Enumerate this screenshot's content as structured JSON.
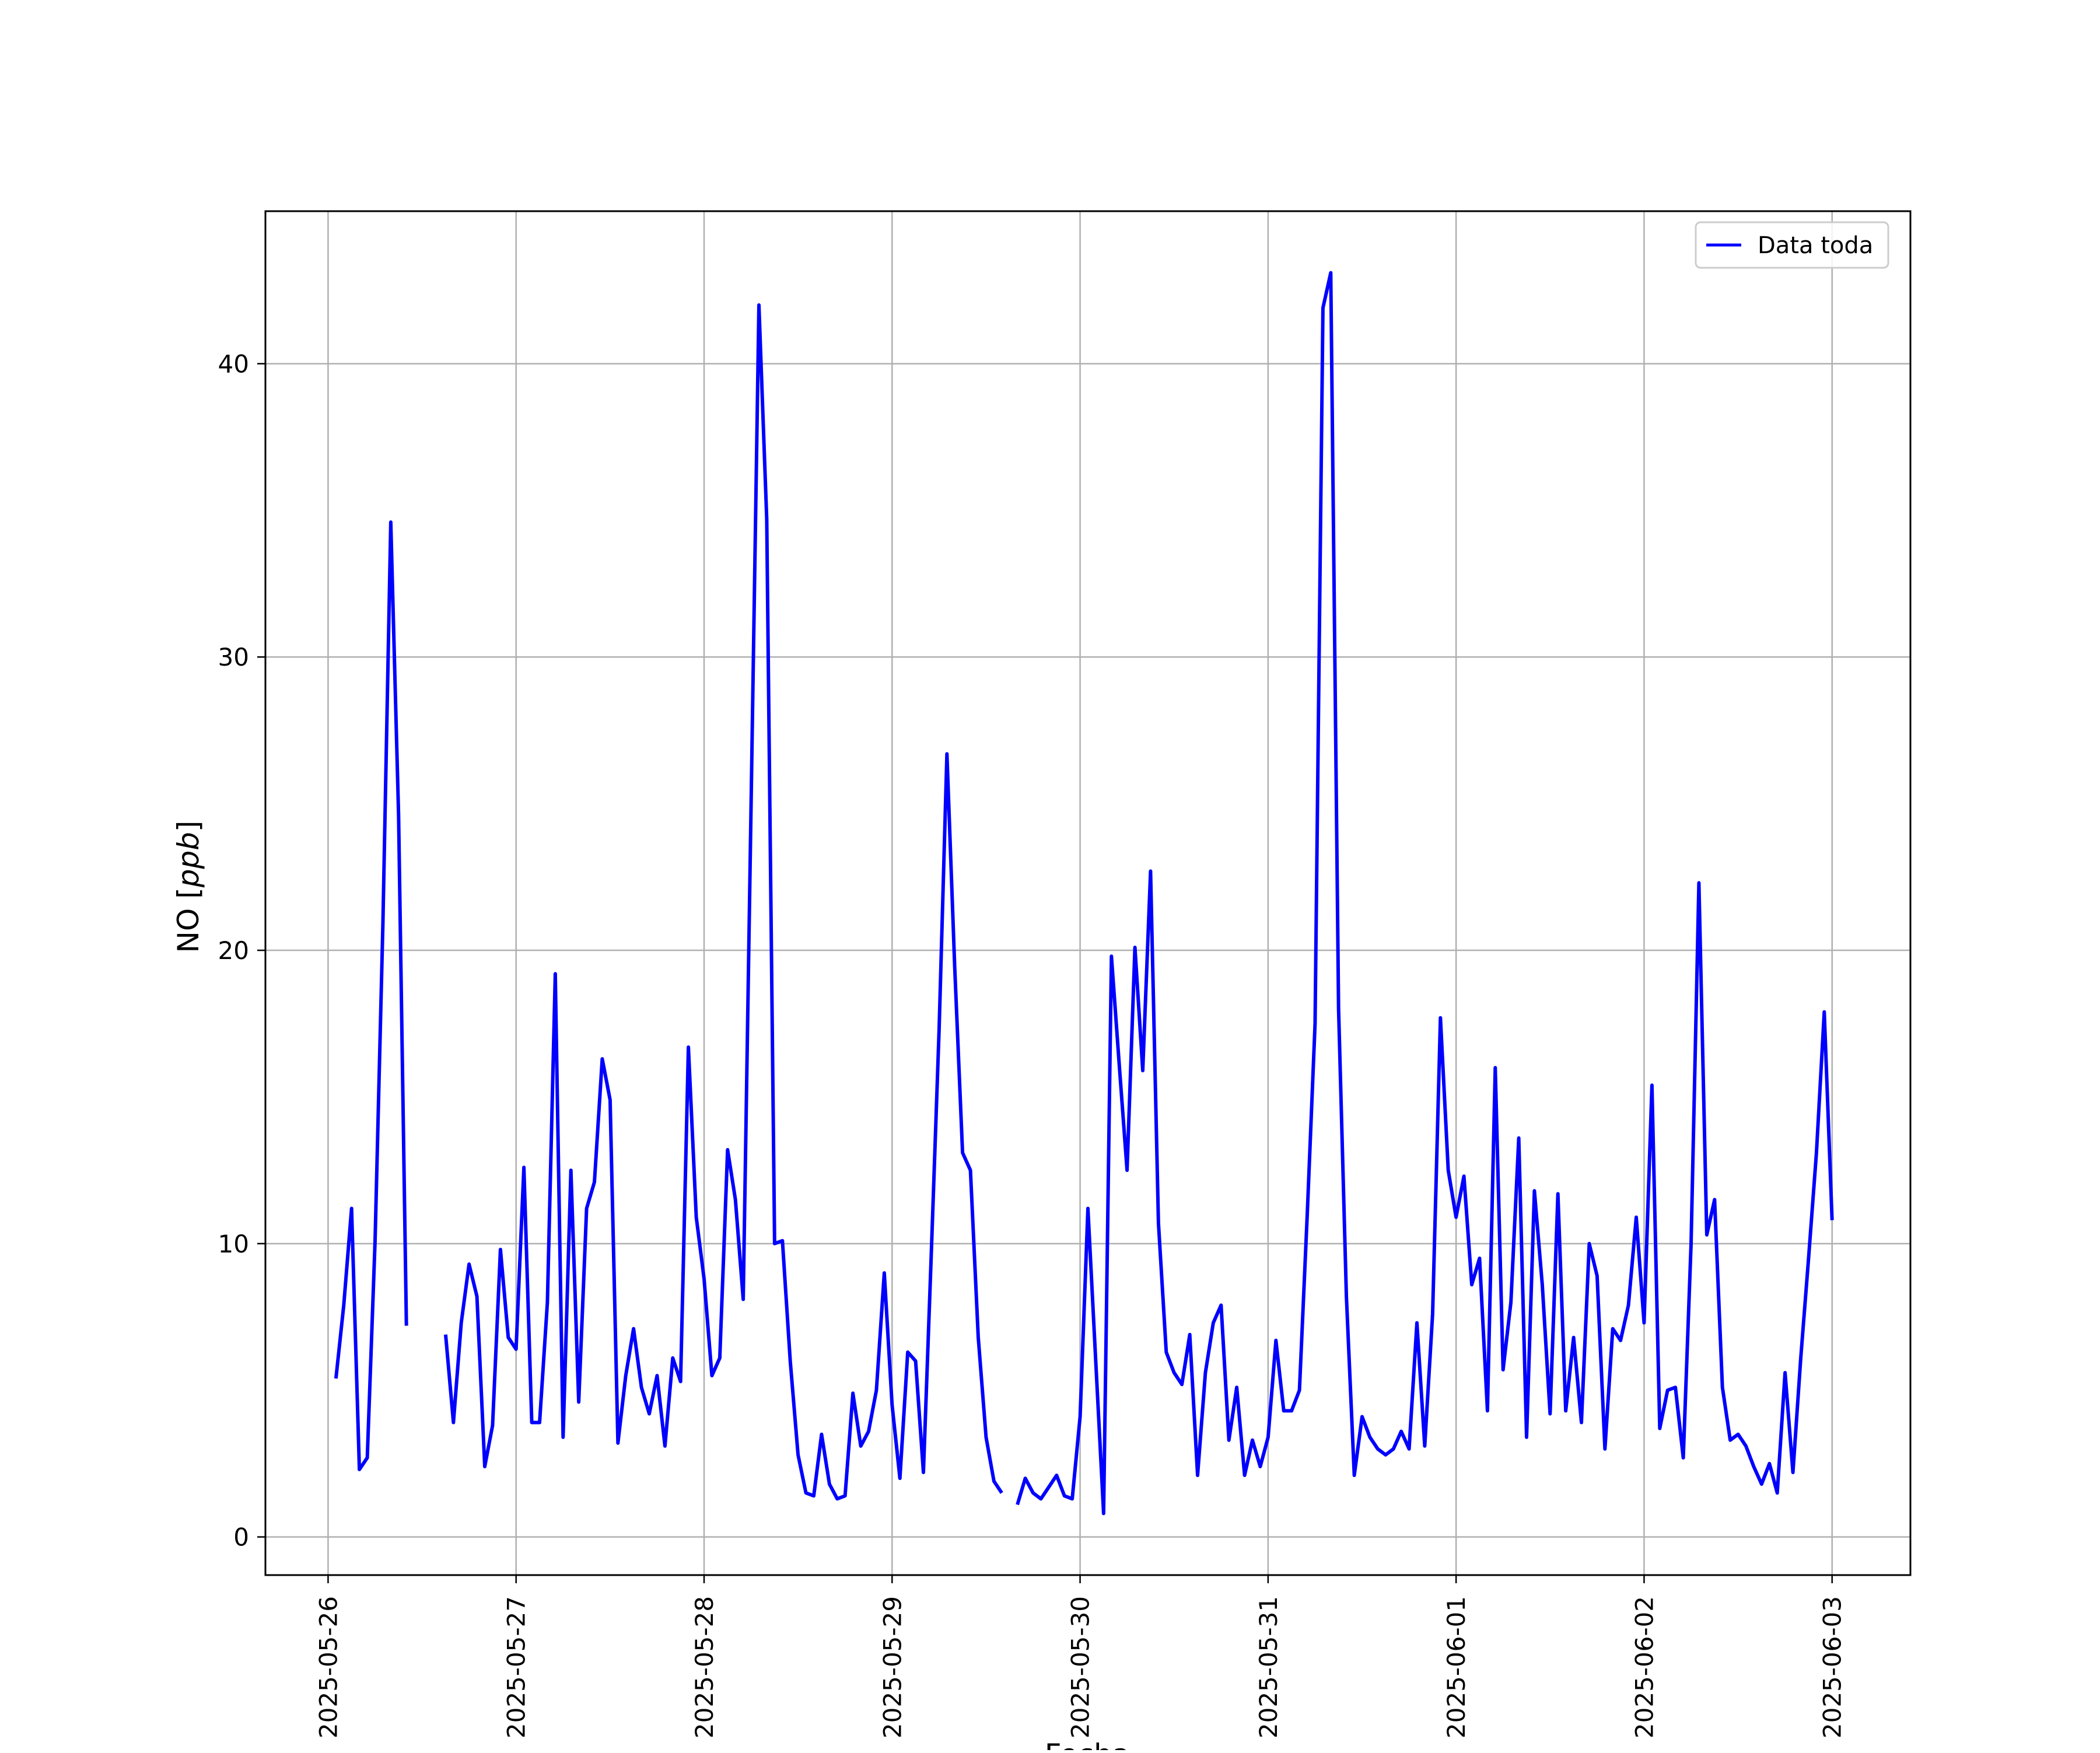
{
  "chart_data": {
    "type": "line",
    "title": "",
    "xlabel": "Fecha",
    "ylabel_main": "NO [",
    "ylabel_unit": "ppb",
    "ylabel_end": "]",
    "x_start": "2025-05-26",
    "x_ticks": [
      "2025-05-26",
      "2025-05-27",
      "2025-05-28",
      "2025-05-29",
      "2025-05-30",
      "2025-05-31",
      "2025-06-01",
      "2025-06-02",
      "2025-06-03"
    ],
    "y_ticks": [
      0,
      10,
      20,
      30,
      40
    ],
    "xlim": [
      "2025-05-25 16:00",
      "2025-06-03 10:00"
    ],
    "ylim": [
      -1.3,
      45.2
    ],
    "grid": true,
    "legend": {
      "position": "top-right"
    },
    "series": [
      {
        "name": "Data toda",
        "color": "#0000ff",
        "points": [
          [
            "2025-05-26 01:00",
            5.4
          ],
          [
            "2025-05-26 02:00",
            7.9
          ],
          [
            "2025-05-26 03:00",
            11.2
          ],
          [
            "2025-05-26 04:00",
            2.3
          ],
          [
            "2025-05-26 05:00",
            2.7
          ],
          [
            "2025-05-26 06:00",
            10.1
          ],
          [
            "2025-05-26 07:00",
            20.9
          ],
          [
            "2025-05-26 08:00",
            34.6
          ],
          [
            "2025-05-26 09:00",
            24.6
          ],
          [
            "2025-05-26 10:00",
            7.2
          ],
          null,
          [
            "2025-05-26 15:00",
            6.9
          ],
          [
            "2025-05-26 16:00",
            3.9
          ],
          [
            "2025-05-26 17:00",
            7.3
          ],
          [
            "2025-05-26 18:00",
            9.3
          ],
          [
            "2025-05-26 19:00",
            8.2
          ],
          [
            "2025-05-26 20:00",
            2.4
          ],
          [
            "2025-05-26 21:00",
            3.8
          ],
          [
            "2025-05-26 22:00",
            9.8
          ],
          [
            "2025-05-26 23:00",
            6.8
          ],
          [
            "2025-05-27 00:00",
            6.4
          ],
          [
            "2025-05-27 01:00",
            12.6
          ],
          [
            "2025-05-27 02:00",
            3.9
          ],
          [
            "2025-05-27 03:00",
            3.9
          ],
          [
            "2025-05-27 04:00",
            8.0
          ],
          [
            "2025-05-27 05:00",
            19.2
          ],
          [
            "2025-05-27 06:00",
            3.4
          ],
          [
            "2025-05-27 07:00",
            12.5
          ],
          [
            "2025-05-27 08:00",
            4.6
          ],
          [
            "2025-05-27 09:00",
            11.2
          ],
          [
            "2025-05-27 10:00",
            12.1
          ],
          [
            "2025-05-27 11:00",
            16.3
          ],
          [
            "2025-05-27 12:00",
            14.9
          ],
          [
            "2025-05-27 13:00",
            3.2
          ],
          [
            "2025-05-27 14:00",
            5.5
          ],
          [
            "2025-05-27 15:00",
            7.1
          ],
          [
            "2025-05-27 16:00",
            5.1
          ],
          [
            "2025-05-27 17:00",
            4.2
          ],
          [
            "2025-05-27 18:00",
            5.5
          ],
          [
            "2025-05-27 19:00",
            3.1
          ],
          [
            "2025-05-27 20:00",
            6.1
          ],
          [
            "2025-05-27 21:00",
            5.3
          ],
          [
            "2025-05-27 22:00",
            16.7
          ],
          [
            "2025-05-27 23:00",
            10.9
          ],
          [
            "2025-05-28 00:00",
            8.8
          ],
          [
            "2025-05-28 01:00",
            5.5
          ],
          [
            "2025-05-28 02:00",
            6.1
          ],
          [
            "2025-05-28 03:00",
            13.2
          ],
          [
            "2025-05-28 04:00",
            11.5
          ],
          [
            "2025-05-28 05:00",
            8.1
          ],
          [
            "2025-05-28 06:00",
            25.0
          ],
          [
            "2025-05-28 07:00",
            42.0
          ],
          [
            "2025-05-28 08:00",
            34.7
          ],
          [
            "2025-05-28 09:00",
            10.0
          ],
          [
            "2025-05-28 10:00",
            10.1
          ],
          [
            "2025-05-28 11:00",
            6.0
          ],
          [
            "2025-05-28 12:00",
            2.8
          ],
          [
            "2025-05-28 13:00",
            1.5
          ],
          [
            "2025-05-28 14:00",
            1.4
          ],
          [
            "2025-05-28 15:00",
            3.5
          ],
          [
            "2025-05-28 16:00",
            1.8
          ],
          [
            "2025-05-28 17:00",
            1.3
          ],
          [
            "2025-05-28 18:00",
            1.4
          ],
          [
            "2025-05-28 19:00",
            4.9
          ],
          [
            "2025-05-28 20:00",
            3.1
          ],
          [
            "2025-05-28 21:00",
            3.6
          ],
          [
            "2025-05-28 22:00",
            5.0
          ],
          [
            "2025-05-28 23:00",
            9.0
          ],
          [
            "2025-05-29 00:00",
            4.5
          ],
          [
            "2025-05-29 01:00",
            2.0
          ],
          [
            "2025-05-29 02:00",
            6.3
          ],
          [
            "2025-05-29 03:00",
            6.0
          ],
          [
            "2025-05-29 04:00",
            2.2
          ],
          [
            "2025-05-29 05:00",
            9.6
          ],
          [
            "2025-05-29 06:00",
            17.3
          ],
          [
            "2025-05-29 07:00",
            26.7
          ],
          [
            "2025-05-29 08:00",
            19.4
          ],
          [
            "2025-05-29 09:00",
            13.1
          ],
          [
            "2025-05-29 10:00",
            12.5
          ],
          [
            "2025-05-29 11:00",
            6.8
          ],
          [
            "2025-05-29 12:00",
            3.4
          ],
          [
            "2025-05-29 13:00",
            1.9
          ],
          [
            "2025-05-29 14:00",
            1.5
          ],
          null,
          [
            "2025-05-29 16:00",
            1.1
          ],
          [
            "2025-05-29 17:00",
            2.0
          ],
          [
            "2025-05-29 18:00",
            1.5
          ],
          [
            "2025-05-29 19:00",
            1.3
          ],
          [
            "2025-05-29 20:00",
            1.7
          ],
          [
            "2025-05-29 21:00",
            2.1
          ],
          [
            "2025-05-29 22:00",
            1.4
          ],
          [
            "2025-05-29 23:00",
            1.3
          ],
          [
            "2025-05-30 00:00",
            4.1
          ],
          [
            "2025-05-30 01:00",
            11.2
          ],
          [
            "2025-05-30 02:00",
            6.0
          ],
          [
            "2025-05-30 03:00",
            0.8
          ],
          [
            "2025-05-30 04:00",
            19.8
          ],
          [
            "2025-05-30 05:00",
            16.1
          ],
          [
            "2025-05-30 06:00",
            12.5
          ],
          [
            "2025-05-30 07:00",
            20.1
          ],
          [
            "2025-05-30 08:00",
            15.9
          ],
          [
            "2025-05-30 09:00",
            22.7
          ],
          [
            "2025-05-30 10:00",
            10.7
          ],
          [
            "2025-05-30 11:00",
            6.3
          ],
          [
            "2025-05-30 12:00",
            5.6
          ],
          [
            "2025-05-30 13:00",
            5.2
          ],
          [
            "2025-05-30 14:00",
            6.9
          ],
          [
            "2025-05-30 15:00",
            2.1
          ],
          [
            "2025-05-30 16:00",
            5.6
          ],
          [
            "2025-05-30 17:00",
            7.3
          ],
          [
            "2025-05-30 18:00",
            7.9
          ],
          [
            "2025-05-30 19:00",
            3.3
          ],
          [
            "2025-05-30 20:00",
            5.1
          ],
          [
            "2025-05-30 21:00",
            2.1
          ],
          [
            "2025-05-30 22:00",
            3.3
          ],
          [
            "2025-05-30 23:00",
            2.4
          ],
          [
            "2025-05-31 00:00",
            3.4
          ],
          [
            "2025-05-31 01:00",
            6.7
          ],
          [
            "2025-05-31 02:00",
            4.3
          ],
          [
            "2025-05-31 03:00",
            4.3
          ],
          [
            "2025-05-31 04:00",
            5.0
          ],
          [
            "2025-05-31 05:00",
            11.0
          ],
          [
            "2025-05-31 06:00",
            17.5
          ],
          [
            "2025-05-31 07:00",
            41.9
          ],
          [
            "2025-05-31 08:00",
            43.1
          ],
          [
            "2025-05-31 09:00",
            18.0
          ],
          [
            "2025-05-31 10:00",
            8.2
          ],
          [
            "2025-05-31 11:00",
            2.1
          ],
          [
            "2025-05-31 12:00",
            4.1
          ],
          [
            "2025-05-31 13:00",
            3.4
          ],
          [
            "2025-05-31 14:00",
            3.0
          ],
          [
            "2025-05-31 15:00",
            2.8
          ],
          [
            "2025-05-31 16:00",
            3.0
          ],
          [
            "2025-05-31 17:00",
            3.6
          ],
          [
            "2025-05-31 18:00",
            3.0
          ],
          [
            "2025-05-31 19:00",
            7.3
          ],
          [
            "2025-05-31 20:00",
            3.1
          ],
          [
            "2025-05-31 21:00",
            7.6
          ],
          [
            "2025-05-31 22:00",
            17.7
          ],
          [
            "2025-05-31 23:00",
            12.5
          ],
          [
            "2025-06-01 00:00",
            10.9
          ],
          [
            "2025-06-01 01:00",
            12.3
          ],
          [
            "2025-06-01 02:00",
            8.6
          ],
          [
            "2025-06-01 03:00",
            9.5
          ],
          [
            "2025-06-01 04:00",
            4.3
          ],
          [
            "2025-06-01 05:00",
            16.0
          ],
          [
            "2025-06-01 06:00",
            5.7
          ],
          [
            "2025-06-01 07:00",
            8.0
          ],
          [
            "2025-06-01 08:00",
            13.6
          ],
          [
            "2025-06-01 09:00",
            3.4
          ],
          [
            "2025-06-01 10:00",
            11.8
          ],
          [
            "2025-06-01 11:00",
            8.6
          ],
          [
            "2025-06-01 12:00",
            4.2
          ],
          [
            "2025-06-01 13:00",
            11.7
          ],
          [
            "2025-06-01 14:00",
            4.3
          ],
          [
            "2025-06-01 15:00",
            6.8
          ],
          [
            "2025-06-01 16:00",
            3.9
          ],
          [
            "2025-06-01 17:00",
            10.0
          ],
          [
            "2025-06-01 18:00",
            8.9
          ],
          [
            "2025-06-01 19:00",
            3.0
          ],
          [
            "2025-06-01 20:00",
            7.1
          ],
          [
            "2025-06-01 21:00",
            6.7
          ],
          [
            "2025-06-01 22:00",
            7.9
          ],
          [
            "2025-06-01 23:00",
            10.9
          ],
          [
            "2025-06-02 00:00",
            7.3
          ],
          [
            "2025-06-02 01:00",
            15.4
          ],
          [
            "2025-06-02 02:00",
            3.7
          ],
          [
            "2025-06-02 03:00",
            5.0
          ],
          [
            "2025-06-02 04:00",
            5.1
          ],
          [
            "2025-06-02 05:00",
            2.7
          ],
          [
            "2025-06-02 06:00",
            10.0
          ],
          [
            "2025-06-02 07:00",
            22.3
          ],
          [
            "2025-06-02 08:00",
            10.3
          ],
          [
            "2025-06-02 09:00",
            11.5
          ],
          [
            "2025-06-02 10:00",
            5.1
          ],
          [
            "2025-06-02 11:00",
            3.3
          ],
          [
            "2025-06-02 12:00",
            3.5
          ],
          [
            "2025-06-02 13:00",
            3.1
          ],
          [
            "2025-06-02 14:00",
            2.4
          ],
          [
            "2025-06-02 15:00",
            1.8
          ],
          [
            "2025-06-02 16:00",
            2.5
          ],
          [
            "2025-06-02 17:00",
            1.5
          ],
          [
            "2025-06-02 18:00",
            5.6
          ],
          [
            "2025-06-02 19:00",
            2.2
          ],
          [
            "2025-06-02 20:00",
            6.1
          ],
          [
            "2025-06-02 21:00",
            9.5
          ],
          [
            "2025-06-02 22:00",
            13.1
          ],
          [
            "2025-06-02 23:00",
            17.9
          ],
          [
            "2025-06-03 00:00",
            10.8
          ]
        ]
      }
    ]
  }
}
